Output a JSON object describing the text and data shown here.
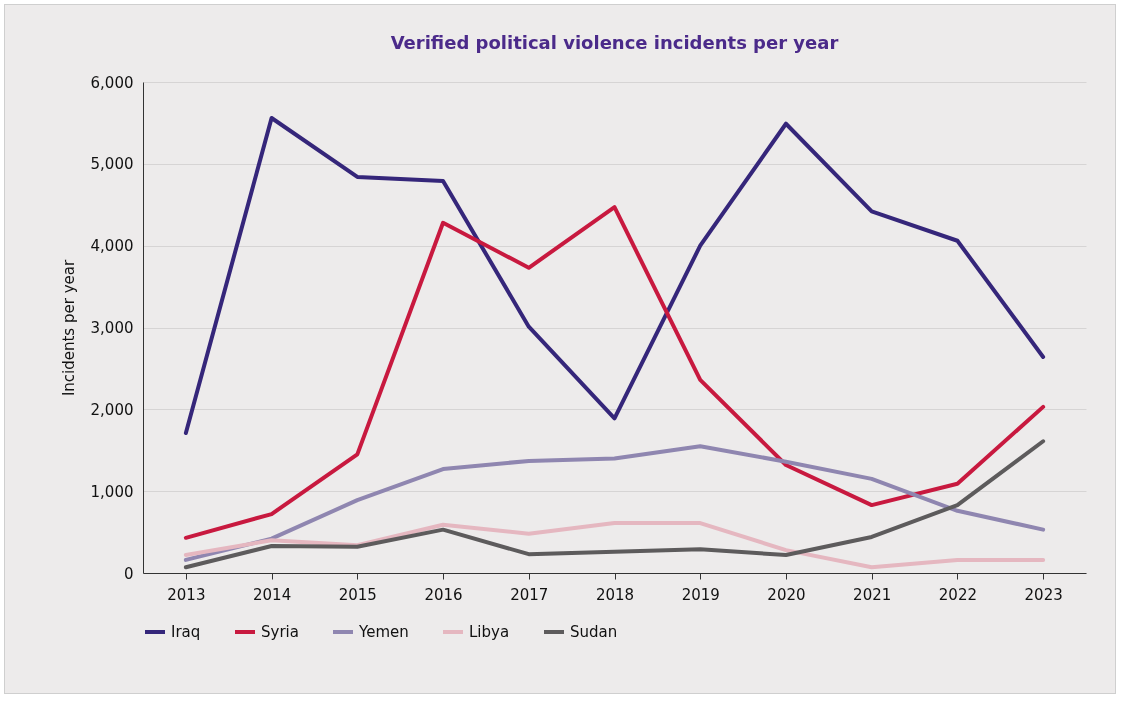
{
  "chart_data": {
    "type": "line",
    "title": "Verified political violence incidents per year",
    "ylabel": "Incidents per year",
    "categories": [
      "2013",
      "2014",
      "2015",
      "2016",
      "2017",
      "2018",
      "2019",
      "2020",
      "2021",
      "2022",
      "2023"
    ],
    "series": [
      {
        "name": "Iraq",
        "color": "#35267a",
        "values": [
          1710,
          5560,
          4840,
          4790,
          3010,
          1890,
          4000,
          5490,
          4420,
          4060,
          2640
        ]
      },
      {
        "name": "Syria",
        "color": "#c8193f",
        "values": [
          430,
          720,
          1450,
          4280,
          3730,
          4470,
          2360,
          1320,
          830,
          1090,
          2030
        ]
      },
      {
        "name": "Yemen",
        "color": "#8f86b0",
        "values": [
          160,
          420,
          890,
          1270,
          1370,
          1400,
          1550,
          1360,
          1150,
          760,
          530
        ]
      },
      {
        "name": "Libya",
        "color": "#e5b7c0",
        "values": [
          220,
          400,
          340,
          590,
          480,
          610,
          610,
          280,
          70,
          160,
          160
        ]
      },
      {
        "name": "Sudan",
        "color": "#5d5b5c",
        "values": [
          70,
          330,
          320,
          530,
          230,
          260,
          290,
          220,
          440,
          830,
          1610
        ]
      }
    ],
    "ylim": [
      0,
      6000
    ],
    "yticks": [
      0,
      {
        "value": 1000,
        "label": "1,000"
      },
      {
        "value": 2000,
        "label": "2,000"
      },
      {
        "value": 3000,
        "label": "3,000"
      },
      {
        "value": 4000,
        "label": "4,000"
      },
      {
        "value": 5000,
        "label": "5,000"
      },
      {
        "value": 6000,
        "label": "6,000"
      }
    ],
    "grid": "y",
    "legend": "bottom",
    "marker": "none",
    "line_style": "solid"
  }
}
